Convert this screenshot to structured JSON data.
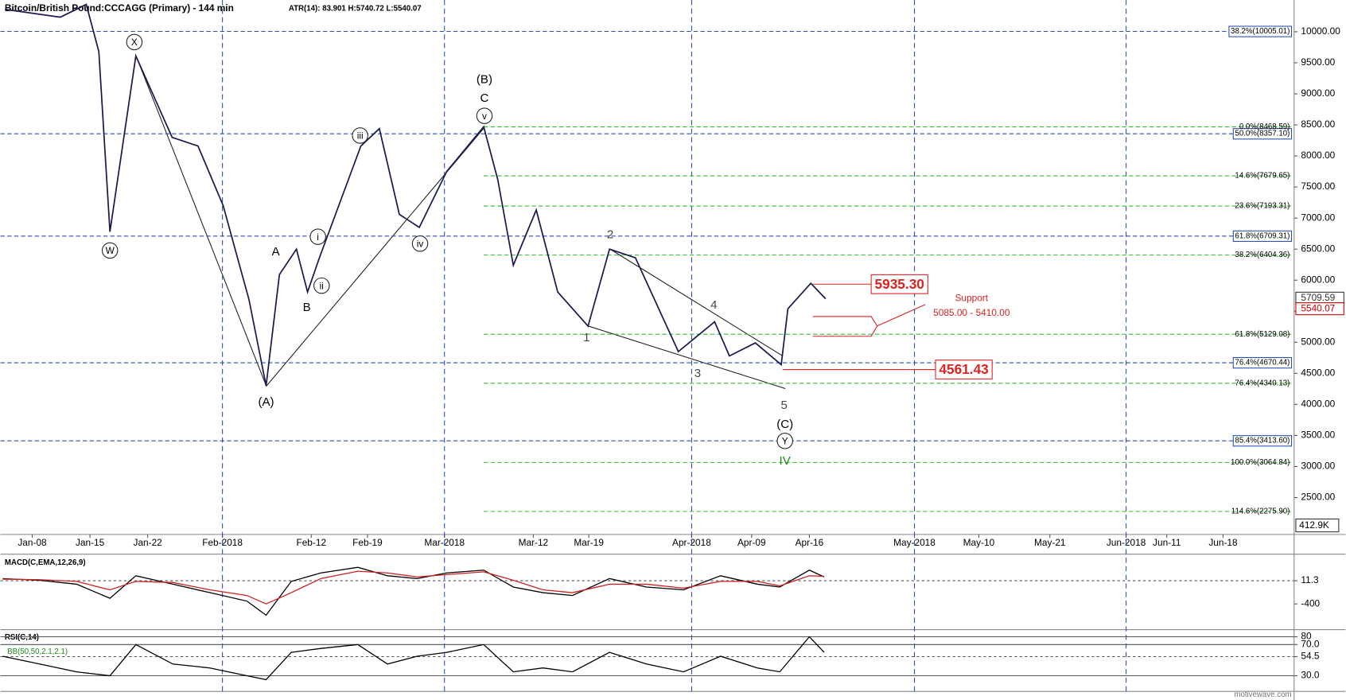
{
  "chart_data": [
    {
      "type": "line",
      "title": "Bitcoin/British Pound:CCCAGG (Primary) - 144 min",
      "subtitle": "ATR(14): 83.901  H:5740.72  L:5540.07",
      "xlim": [
        2.7,
        177.5
      ],
      "xticks": [
        {
          "value": 7,
          "label": "Jan-08"
        },
        {
          "value": 14.8,
          "label": "Jan-15"
        },
        {
          "value": 22.6,
          "label": "Jan-22"
        },
        {
          "value": 32.7,
          "label": "Feb-2018",
          "grid": true
        },
        {
          "value": 44.7,
          "label": "Feb-12"
        },
        {
          "value": 52.3,
          "label": "Feb-19"
        },
        {
          "value": 62.7,
          "label": "Mar-2018",
          "grid": true
        },
        {
          "value": 74.7,
          "label": "Mar-12"
        },
        {
          "value": 82.2,
          "label": "Mar-19"
        },
        {
          "value": 96.1,
          "label": "Apr-2018",
          "grid": true
        },
        {
          "value": 104.2,
          "label": "Apr-09"
        },
        {
          "value": 112.0,
          "label": "Apr-16"
        },
        {
          "value": 126.2,
          "label": "May-2018",
          "grid": true
        },
        {
          "value": 134.9,
          "label": "May-10"
        },
        {
          "value": 144.5,
          "label": "May-21"
        },
        {
          "value": 154.8,
          "label": "Jun-2018",
          "grid": true
        },
        {
          "value": 160.3,
          "label": "Jun-11"
        },
        {
          "value": 167.9,
          "label": "Jun-18"
        }
      ],
      "ylim": [
        1920,
        10511
      ],
      "yticks": [
        {
          "value": 2500,
          "label": "2500.00"
        },
        {
          "value": 3000,
          "label": "3000.00"
        },
        {
          "value": 3500,
          "label": "3500.00"
        },
        {
          "value": 4000,
          "label": "4000.00"
        },
        {
          "value": 4500,
          "label": "4500.00"
        },
        {
          "value": 5000,
          "label": "5000.00"
        },
        {
          "value": 5500,
          "label": "5500.00"
        },
        {
          "value": 6000,
          "label": "6000.00"
        },
        {
          "value": 6500,
          "label": "6500.00"
        },
        {
          "value": 7000,
          "label": "7000.00"
        },
        {
          "value": 7500,
          "label": "7500.00"
        },
        {
          "value": 8000,
          "label": "8000.00"
        },
        {
          "value": 8500,
          "label": "8500.00"
        },
        {
          "value": 9000,
          "label": "9000.00"
        },
        {
          "value": 9500,
          "label": "9500.00"
        },
        {
          "value": 10000,
          "label": "10000.00"
        }
      ],
      "series": [
        {
          "color": "#1a1a4e",
          "x": [
            3.3,
            10.8,
            14.3,
            16.0,
            17.5,
            21.0,
            25.9,
            29.4,
            32.8,
            36.3,
            38.6,
            40.4,
            42.7,
            44.2,
            45.8,
            51.4,
            53.9,
            56.6,
            59.3,
            63.0,
            68.0,
            69.9,
            72.0,
            75.1,
            78.0,
            82.1,
            85.0,
            88.5,
            94.3,
            99.2,
            101.2,
            104.7,
            108.2,
            109.1,
            112.2,
            114.2
          ],
          "values": [
            10360,
            10235,
            10440,
            9680,
            6780,
            9610,
            8300,
            8160,
            7200,
            5680,
            4300,
            6090,
            6500,
            5810,
            6360,
            8160,
            8440,
            7060,
            6850,
            7750,
            8470,
            7620,
            6240,
            7130,
            5810,
            5260,
            6500,
            6360,
            4850,
            5330,
            4780,
            4990,
            4640,
            5540,
            5950,
            5700
          ]
        }
      ],
      "levels": [
        {
          "value": 10005.01,
          "label": "38.2%(10005.01)",
          "color": "#2a4fb0"
        },
        {
          "value": 8357.1,
          "label": "50.0%(8357.10)",
          "color": "#2a4fb0"
        },
        {
          "value": 6709.31,
          "label": "61.8%(6709.31)",
          "color": "#2a4fb0"
        },
        {
          "value": 4670.44,
          "label": "76.4%(4670.44)",
          "color": "#2a4fb0"
        },
        {
          "value": 3413.6,
          "label": "85.4%(3413.60)",
          "color": "#2a4fb0"
        },
        {
          "value": 8468.59,
          "label": "0.0%(8468.59)",
          "color": "#33bb33",
          "from": 68.0
        },
        {
          "value": 7679.65,
          "label": "14.6%(7679.65)",
          "color": "#33bb33",
          "from": 68.0
        },
        {
          "value": 7193.31,
          "label": "23.6%(7193.31)",
          "color": "#33bb33",
          "from": 68.0
        },
        {
          "value": 6404.36,
          "label": "38.2%(6404.36)",
          "color": "#33bb33",
          "from": 68.0
        },
        {
          "value": 5129.08,
          "label": "61.8%(5129.08)",
          "color": "#33bb33",
          "from": 68.0
        },
        {
          "value": 4340.13,
          "label": "76.4%(4340.13)",
          "color": "#33bb33",
          "from": 68.0
        },
        {
          "value": 3064.84,
          "label": "100.0%(3064.84)",
          "color": "#33bb33",
          "from": 68.0
        },
        {
          "value": 2275.9,
          "label": "114.6%(2275.90)",
          "color": "#33bb33",
          "from": 68.0
        }
      ],
      "annotations": [
        {
          "text": "W",
          "x": 17.5,
          "y": 6478,
          "circled": true
        },
        {
          "text": "X",
          "x": 20.8,
          "y": 9834,
          "circled": true
        },
        {
          "text": "(A)",
          "x": 38.6,
          "y": 4047
        },
        {
          "text": "A",
          "x": 39.9,
          "y": 6464
        },
        {
          "text": "B",
          "x": 44.1,
          "y": 5566
        },
        {
          "text": "i",
          "x": 45.6,
          "y": 6699,
          "circled": true
        },
        {
          "text": "ii",
          "x": 46.1,
          "y": 5912,
          "circled": true
        },
        {
          "text": "iii",
          "x": 51.3,
          "y": 8329,
          "circled": true
        },
        {
          "text": "iv",
          "x": 59.4,
          "y": 6588,
          "circled": true
        },
        {
          "text": "(B)",
          "x": 68.1,
          "y": 9240
        },
        {
          "text": "C",
          "x": 68.1,
          "y": 8936
        },
        {
          "text": "v",
          "x": 68.1,
          "y": 8646,
          "circled": true
        },
        {
          "text": "1",
          "x": 81.9,
          "y": 5083,
          "color": "#444"
        },
        {
          "text": "2",
          "x": 85.1,
          "y": 6740,
          "color": "#444"
        },
        {
          "text": "3",
          "x": 96.9,
          "y": 4503,
          "color": "#444"
        },
        {
          "text": "4",
          "x": 99.1,
          "y": 5608,
          "color": "#444"
        },
        {
          "text": "5",
          "x": 108.6,
          "y": 3992,
          "color": "#444"
        },
        {
          "text": "(C)",
          "x": 108.7,
          "y": 3688
        },
        {
          "text": "Y",
          "x": 108.7,
          "y": 3412,
          "circled": true
        },
        {
          "text": "IV",
          "x": 108.7,
          "y": 3094,
          "color": "#1a8a1a"
        }
      ],
      "price_labels": [
        {
          "value": 5709.59,
          "label": "5709.59",
          "color": "#333333"
        },
        {
          "value": 5540.07,
          "label": "5540.07",
          "color": "#cc0000"
        }
      ],
      "targets": [
        {
          "value": 5935.3,
          "label": "5935.30"
        },
        {
          "value": 4561.43,
          "label": "4561.43"
        }
      ],
      "support": {
        "title": "Support",
        "range": "5085.00 - 5410.00"
      },
      "volume_label": "412.9K",
      "watermark": "motivewave.com"
    },
    {
      "type": "line",
      "title": "MACD(C,EMA,12,26,9)",
      "xlim": [
        2.7,
        177.5
      ],
      "ylim": [
        -842,
        453
      ],
      "yticks": [
        11.3,
        -400
      ],
      "series": [
        {
          "color": "#000000",
          "x": [
            3,
            8,
            13,
            17.5,
            21,
            26,
            31,
            36,
            38.6,
            42,
            46,
            51,
            55,
            59,
            63,
            68,
            72,
            76,
            80,
            85,
            90,
            95,
            100,
            105,
            108,
            112,
            114
          ],
          "values": [
            50,
            20,
            -50,
            -300,
            100,
            -50,
            -200,
            -350,
            -600,
            0,
            150,
            250,
            100,
            50,
            150,
            200,
            -100,
            -200,
            -250,
            50,
            -100,
            -150,
            100,
            -50,
            -100,
            200,
            80
          ]
        },
        {
          "color": "#cc2222",
          "x": [
            3,
            8,
            13,
            17.5,
            21,
            26,
            31,
            36,
            38.6,
            42,
            46,
            51,
            55,
            59,
            63,
            68,
            72,
            76,
            80,
            85,
            90,
            95,
            100,
            105,
            108,
            112,
            114
          ],
          "values": [
            40,
            30,
            0,
            -150,
            0,
            -20,
            -150,
            -250,
            -400,
            -200,
            50,
            180,
            150,
            80,
            120,
            170,
            20,
            -150,
            -200,
            -50,
            -50,
            -120,
            0,
            0,
            -80,
            100,
            90
          ]
        }
      ]
    },
    {
      "type": "line",
      "title": "RSI(C,14)",
      "subtitle": "BB(50,50,2.1,2.1)",
      "xlim": [
        2.7,
        177.5
      ],
      "ylim": [
        11,
        88
      ],
      "yticks": [
        80,
        {
          "value": 70,
          "label": "70.0"
        },
        54.5,
        {
          "value": 30,
          "label": "30.0"
        }
      ],
      "series": [
        {
          "color": "#000000",
          "x": [
            3,
            8,
            13,
            17.5,
            21,
            26,
            31,
            36,
            38.6,
            42,
            46,
            51,
            55,
            59,
            63,
            68,
            72,
            76,
            80,
            85,
            90,
            95,
            100,
            105,
            108,
            112,
            114
          ],
          "values": [
            55,
            45,
            35,
            30,
            70,
            45,
            40,
            30,
            25,
            60,
            65,
            70,
            45,
            55,
            60,
            70,
            35,
            40,
            35,
            60,
            45,
            35,
            55,
            40,
            35,
            80,
            60
          ]
        }
      ]
    }
  ]
}
